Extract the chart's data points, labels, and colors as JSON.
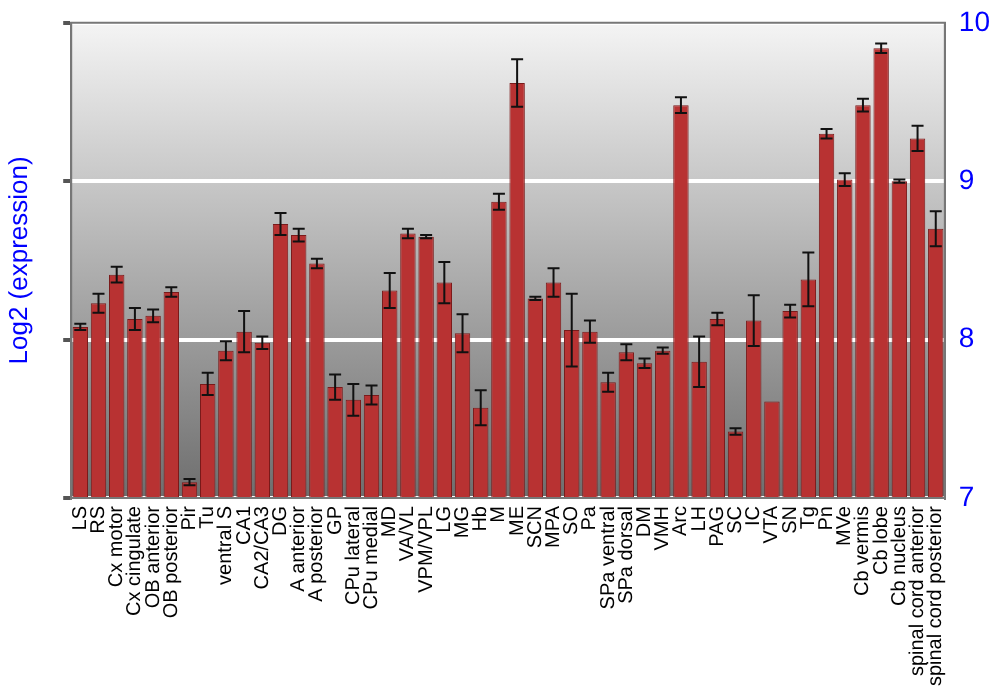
{
  "chart_data": {
    "type": "bar",
    "ylabel": "Log2 (expression)",
    "categories": [
      "LS",
      "RS",
      "Cx motor",
      "Cx cingulate",
      "OB anterior",
      "OB posterior",
      "Pir",
      "Tu",
      "ventral S",
      "CA1",
      "CA2/CA3",
      "DG",
      "A anterior",
      "A posterior",
      "GP",
      "CPu lateral",
      "CPu medial",
      "MD",
      "VA/VL",
      "VPM/VPL",
      "LG",
      "MG",
      "Hb",
      "M",
      "ME",
      "SCN",
      "MPA",
      "SO",
      "Pa",
      "SPa ventral",
      "SPa dorsal",
      "DM",
      "VMH",
      "Arc",
      "LH",
      "PAG",
      "SC",
      "IC",
      "VTA",
      "SN",
      "Tg",
      "Pn",
      "MVe",
      "Cb vermis",
      "Cb lobe",
      "Cb nucleus",
      "spinal cord anterior",
      "spinal cord posterior"
    ],
    "values": [
      8.08,
      8.23,
      8.41,
      8.13,
      8.15,
      8.3,
      7.1,
      7.72,
      7.93,
      8.05,
      7.98,
      8.73,
      8.66,
      8.48,
      7.7,
      7.62,
      7.65,
      8.31,
      8.67,
      8.65,
      8.36,
      8.04,
      7.57,
      8.87,
      9.62,
      8.26,
      8.36,
      8.06,
      8.05,
      7.73,
      7.92,
      7.85,
      7.93,
      9.48,
      7.86,
      8.13,
      7.42,
      8.12,
      7.61,
      8.18,
      8.38,
      9.3,
      9.01,
      9.48,
      9.84,
      9.0,
      9.27,
      8.7
    ],
    "errors": [
      0.02,
      0.06,
      0.05,
      0.07,
      0.04,
      0.03,
      0.02,
      0.07,
      0.06,
      0.13,
      0.04,
      0.07,
      0.04,
      0.03,
      0.08,
      0.1,
      0.06,
      0.11,
      0.03,
      0.01,
      0.13,
      0.12,
      0.11,
      0.05,
      0.15,
      0.01,
      0.09,
      0.23,
      0.07,
      0.06,
      0.05,
      0.03,
      0.02,
      0.05,
      0.16,
      0.04,
      0.02,
      0.16,
      null,
      0.04,
      0.17,
      0.03,
      0.04,
      0.04,
      0.03,
      0.01,
      0.08,
      0.11
    ],
    "color": "#b83232",
    "ylim": [
      7,
      10
    ],
    "yticks": [
      7,
      8,
      9,
      10
    ],
    "grid": "y"
  }
}
